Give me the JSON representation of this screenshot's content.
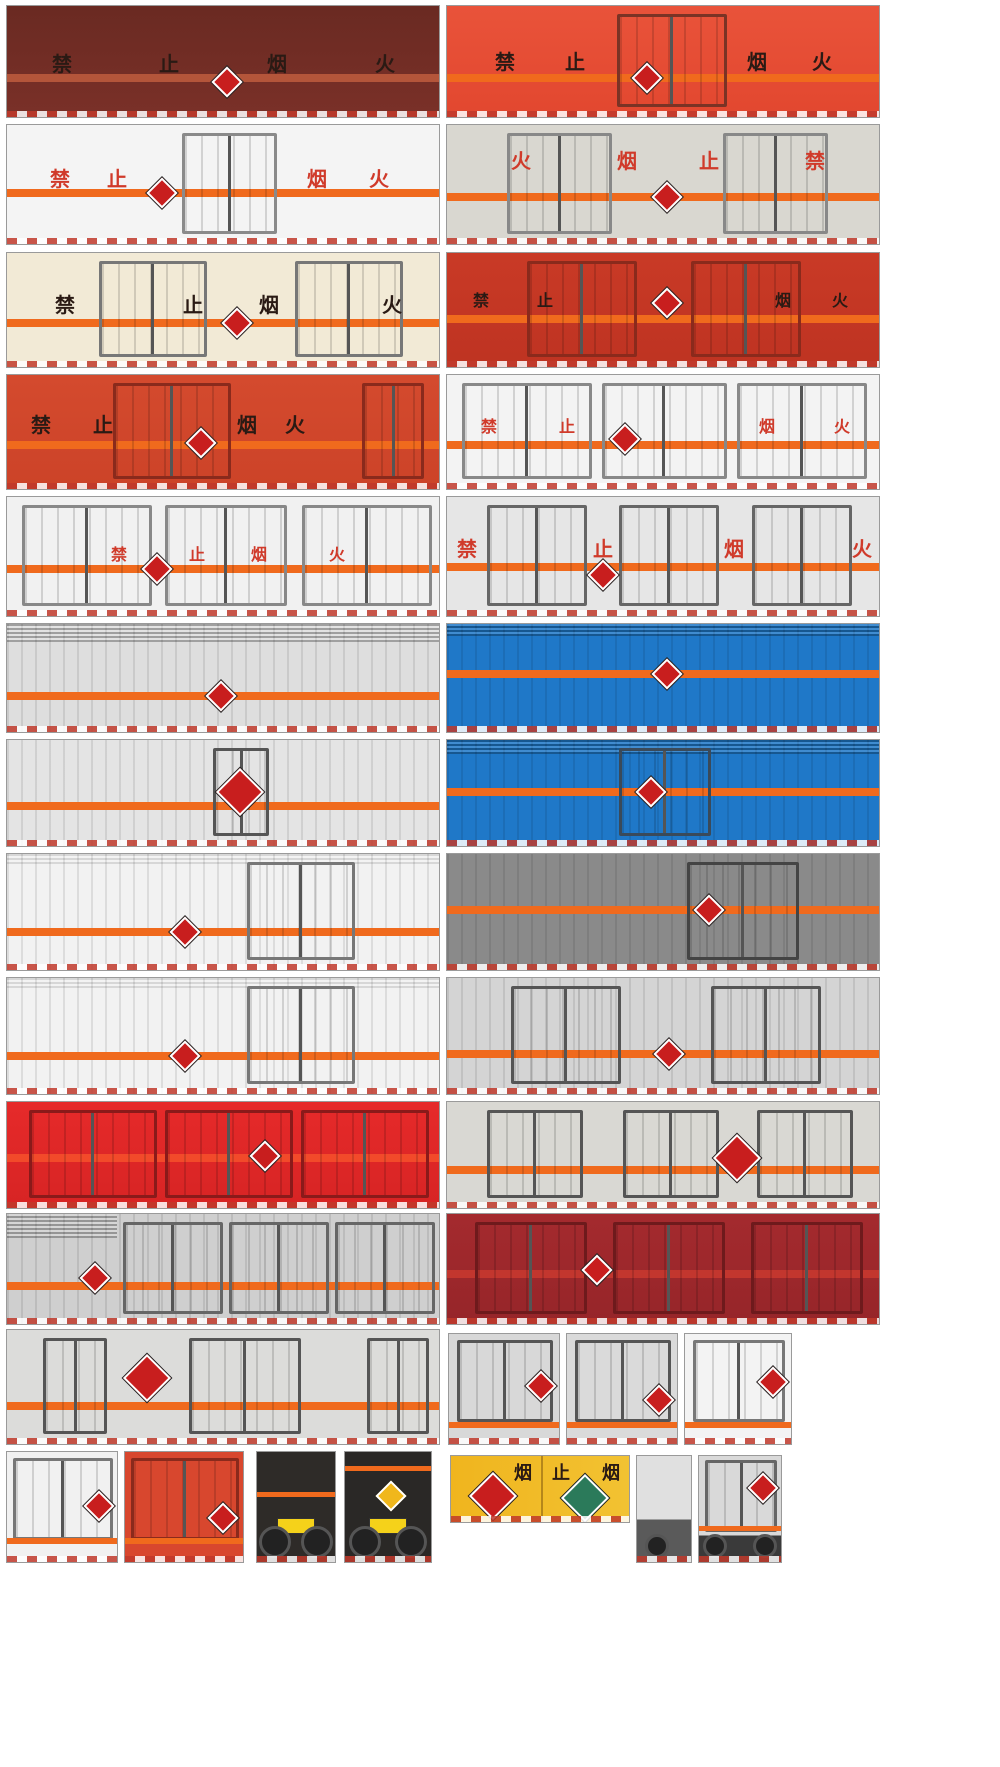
{
  "labels": {
    "forbid": "禁",
    "stop": "止",
    "smoke": "烟",
    "fire": "火"
  },
  "colors": {
    "stripe": "#f06a1d",
    "hazard_sign": "#c81e1e",
    "warning_text_red": "#d03a2a",
    "warning_text_dark": "#2a1a14"
  },
  "panels": [
    {
      "name": "panel-01",
      "body": "dark-maroon",
      "text": [
        "禁",
        "止",
        "烟",
        "火"
      ],
      "text_color": "dark",
      "doors": 0
    },
    {
      "name": "panel-02",
      "body": "orange-red",
      "text": [
        "禁",
        "止",
        "烟",
        "火"
      ],
      "text_color": "dark",
      "doors": 1
    },
    {
      "name": "panel-03",
      "body": "white",
      "text": [
        "禁",
        "止",
        "烟",
        "火"
      ],
      "text_color": "red",
      "doors": 1
    },
    {
      "name": "panel-04",
      "body": "light-grey",
      "text": [
        "火",
        "烟",
        "止",
        "禁"
      ],
      "text_color": "red",
      "doors": 2
    },
    {
      "name": "panel-05",
      "body": "cream",
      "text": [
        "禁",
        "止",
        "烟",
        "火"
      ],
      "text_color": "dark",
      "doors": 2
    },
    {
      "name": "panel-06",
      "body": "red",
      "text": [
        "禁",
        "止",
        "烟",
        "火"
      ],
      "text_color": "dark",
      "doors": 2
    },
    {
      "name": "panel-07",
      "body": "red",
      "text": [
        "禁",
        "止",
        "烟",
        "火"
      ],
      "text_color": "dark",
      "doors": 2
    },
    {
      "name": "panel-08",
      "body": "white",
      "text": [
        "禁",
        "止",
        "烟",
        "火"
      ],
      "text_color": "red",
      "doors": 3
    },
    {
      "name": "panel-09",
      "body": "white",
      "text": [
        "禁",
        "止",
        "烟",
        "火"
      ],
      "text_color": "red",
      "doors": 3
    },
    {
      "name": "panel-10",
      "body": "light-grey",
      "text": [
        "禁",
        "止",
        "烟",
        "火"
      ],
      "text_color": "red",
      "doors": 3
    },
    {
      "name": "panel-11",
      "body": "grey-corrugated",
      "doors": 0
    },
    {
      "name": "panel-12",
      "body": "blue-corrugated",
      "doors": 0
    },
    {
      "name": "panel-13",
      "body": "grey-corrugated",
      "doors": 1
    },
    {
      "name": "panel-14",
      "body": "blue-corrugated",
      "doors": 1
    },
    {
      "name": "panel-15",
      "body": "white-corrugated",
      "doors": 1
    },
    {
      "name": "panel-16",
      "body": "dark-grey-corrugated",
      "doors": 1
    },
    {
      "name": "panel-17",
      "body": "white-corrugated",
      "doors": 1
    },
    {
      "name": "panel-18",
      "body": "grey-corrugated",
      "doors": 2
    },
    {
      "name": "panel-19",
      "body": "red",
      "doors": 3
    },
    {
      "name": "panel-20",
      "body": "light-grey",
      "doors": 3
    },
    {
      "name": "panel-21",
      "body": "grey-corrugated",
      "doors": 3
    },
    {
      "name": "panel-22",
      "body": "dark-red",
      "doors": 3
    },
    {
      "name": "panel-23",
      "body": "light-grey",
      "doors": 3
    },
    {
      "name": "rear-01",
      "body": "light-grey"
    },
    {
      "name": "rear-02",
      "body": "light-grey"
    },
    {
      "name": "rear-03",
      "body": "white"
    },
    {
      "name": "rear-04",
      "body": "white"
    },
    {
      "name": "rear-05",
      "body": "orange-red"
    },
    {
      "name": "rear-06",
      "body": "dark"
    },
    {
      "name": "rear-07",
      "body": "dark"
    },
    {
      "name": "sign-yellow",
      "body": "yellow",
      "text": [
        "烟",
        "止",
        "烟"
      ]
    },
    {
      "name": "rear-08",
      "body": "grey"
    },
    {
      "name": "rear-09",
      "body": "light-grey"
    }
  ]
}
